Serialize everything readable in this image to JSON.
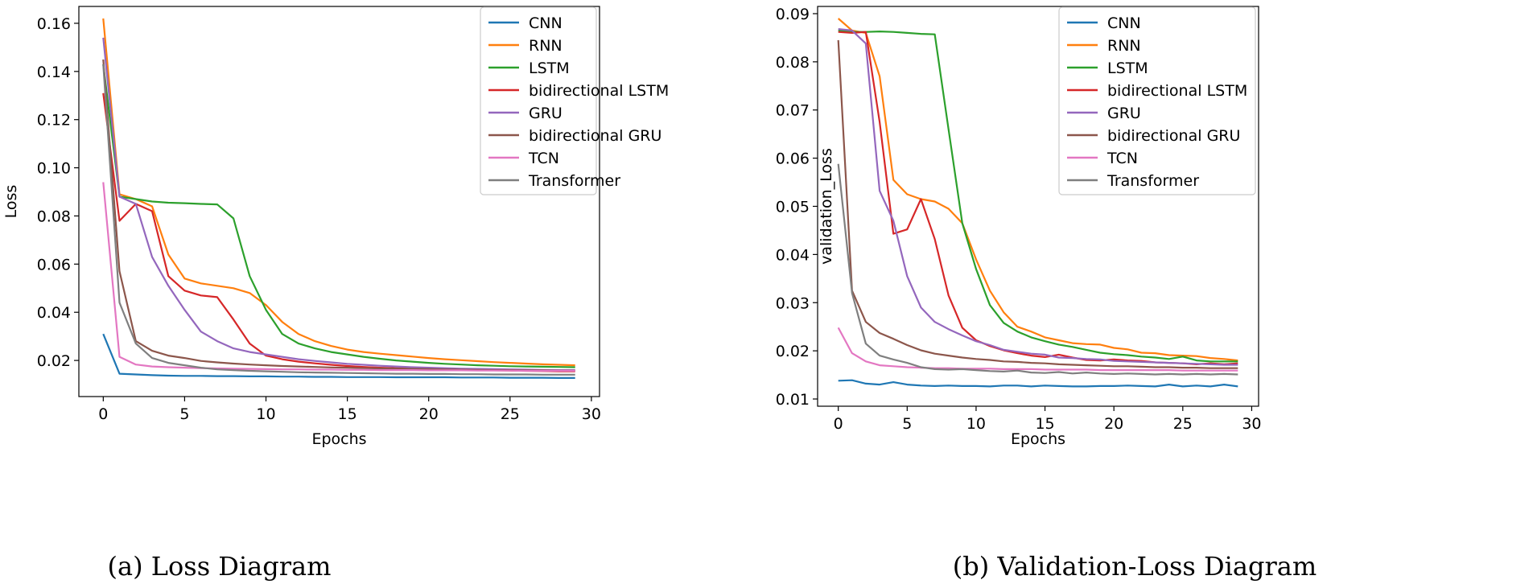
{
  "captions": [
    "(a) Loss Diagram",
    "(b) Validation-Loss Diagram"
  ],
  "chart_data": [
    {
      "type": "line",
      "title": "",
      "xlabel": "Epochs",
      "ylabel": "Loss",
      "xlim": [
        -1.5,
        30.5
      ],
      "ylim": [
        0.005,
        0.167
      ],
      "xticks": [
        0,
        5,
        10,
        15,
        20,
        25,
        30
      ],
      "yticks": [
        0.02,
        0.04,
        0.06,
        0.08,
        0.1,
        0.12,
        0.14,
        0.16
      ],
      "ytick_labels": [
        "0.02",
        "0.04",
        "0.06",
        "0.08",
        "0.10",
        "0.12",
        "0.14",
        "0.16"
      ],
      "legend_position": "upper right",
      "grid": false,
      "x": [
        0,
        1,
        2,
        3,
        4,
        5,
        6,
        7,
        8,
        9,
        10,
        11,
        12,
        13,
        14,
        15,
        16,
        17,
        18,
        19,
        20,
        21,
        22,
        23,
        24,
        25,
        26,
        27,
        28,
        29
      ],
      "series": [
        {
          "name": "CNN",
          "color": "#1f77b4",
          "values": [
            0.031,
            0.0145,
            0.0142,
            0.0139,
            0.0137,
            0.0136,
            0.0136,
            0.0135,
            0.0135,
            0.0134,
            0.0134,
            0.0133,
            0.0133,
            0.0132,
            0.0132,
            0.0131,
            0.0131,
            0.0131,
            0.013,
            0.013,
            0.013,
            0.013,
            0.0129,
            0.0129,
            0.0129,
            0.0128,
            0.0128,
            0.0128,
            0.0127,
            0.0127
          ]
        },
        {
          "name": "RNN",
          "color": "#ff7f0e",
          "values": [
            0.162,
            0.089,
            0.087,
            0.084,
            0.064,
            0.054,
            0.052,
            0.051,
            0.05,
            0.048,
            0.043,
            0.036,
            0.031,
            0.028,
            0.026,
            0.0245,
            0.0235,
            0.0228,
            0.0222,
            0.0216,
            0.021,
            0.0205,
            0.0201,
            0.0197,
            0.0193,
            0.019,
            0.0187,
            0.0184,
            0.0182,
            0.018
          ]
        },
        {
          "name": "LSTM",
          "color": "#2ca02c",
          "values": [
            0.143,
            0.088,
            0.087,
            0.086,
            0.0855,
            0.0853,
            0.085,
            0.0848,
            0.079,
            0.055,
            0.041,
            0.031,
            0.027,
            0.025,
            0.0235,
            0.0225,
            0.0215,
            0.0207,
            0.02,
            0.0195,
            0.019,
            0.0186,
            0.0183,
            0.018,
            0.0178,
            0.0176,
            0.0175,
            0.0174,
            0.0173,
            0.0172
          ]
        },
        {
          "name": "bidirectional LSTM",
          "color": "#d62728",
          "values": [
            0.131,
            0.078,
            0.085,
            0.082,
            0.055,
            0.049,
            0.047,
            0.0463,
            0.037,
            0.027,
            0.022,
            0.0205,
            0.0195,
            0.0188,
            0.0182,
            0.0177,
            0.0173,
            0.017,
            0.0168,
            0.0166,
            0.0164,
            0.0162,
            0.0161,
            0.016,
            0.0159,
            0.0158,
            0.0157,
            0.0156,
            0.0155,
            0.0155
          ]
        },
        {
          "name": "GRU",
          "color": "#9467bd",
          "values": [
            0.154,
            0.088,
            0.085,
            0.063,
            0.051,
            0.041,
            0.032,
            0.028,
            0.025,
            0.0235,
            0.0225,
            0.0215,
            0.0205,
            0.0198,
            0.0192,
            0.0186,
            0.0182,
            0.0178,
            0.0175,
            0.0172,
            0.017,
            0.0168,
            0.0166,
            0.0165,
            0.0164,
            0.0163,
            0.0162,
            0.0161,
            0.016,
            0.016
          ]
        },
        {
          "name": "bidirectional GRU",
          "color": "#8c564b",
          "values": [
            0.145,
            0.057,
            0.028,
            0.024,
            0.022,
            0.021,
            0.0198,
            0.0192,
            0.0187,
            0.0183,
            0.018,
            0.0177,
            0.0175,
            0.0173,
            0.0171,
            0.017,
            0.0168,
            0.0167,
            0.0166,
            0.0165,
            0.0164,
            0.0163,
            0.0162,
            0.0161,
            0.016,
            0.016,
            0.0159,
            0.0159,
            0.0158,
            0.0158
          ]
        },
        {
          "name": "TCN",
          "color": "#e377c2",
          "values": [
            0.094,
            0.0215,
            0.0183,
            0.0175,
            0.0172,
            0.017,
            0.0168,
            0.0167,
            0.0166,
            0.0165,
            0.0164,
            0.0163,
            0.0163,
            0.0162,
            0.0162,
            0.0161,
            0.0161,
            0.016,
            0.016,
            0.016,
            0.0159,
            0.0159,
            0.0159,
            0.0158,
            0.0158,
            0.0158,
            0.0157,
            0.0157,
            0.0157,
            0.0157
          ]
        },
        {
          "name": "Transformer",
          "color": "#7f7f7f",
          "values": [
            0.143,
            0.044,
            0.027,
            0.021,
            0.019,
            0.018,
            0.017,
            0.0163,
            0.016,
            0.0157,
            0.0155,
            0.0153,
            0.0151,
            0.015,
            0.0149,
            0.0148,
            0.0147,
            0.0146,
            0.0145,
            0.0145,
            0.0144,
            0.0144,
            0.0143,
            0.0143,
            0.0142,
            0.0142,
            0.0142,
            0.0141,
            0.0141,
            0.0141
          ]
        }
      ]
    },
    {
      "type": "line",
      "title": "",
      "xlabel": "Epochs",
      "ylabel": "validation_Loss",
      "xlim": [
        -1.5,
        30.5
      ],
      "ylim": [
        0.0085,
        0.0915
      ],
      "xticks": [
        0,
        5,
        10,
        15,
        20,
        25,
        30
      ],
      "yticks": [
        0.01,
        0.02,
        0.03,
        0.04,
        0.05,
        0.06,
        0.07,
        0.08,
        0.09
      ],
      "ytick_labels": [
        "0.01",
        "0.02",
        "0.03",
        "0.04",
        "0.05",
        "0.06",
        "0.07",
        "0.08",
        "0.09"
      ],
      "legend_position": "upper right",
      "grid": false,
      "x": [
        0,
        1,
        2,
        3,
        4,
        5,
        6,
        7,
        8,
        9,
        10,
        11,
        12,
        13,
        14,
        15,
        16,
        17,
        18,
        19,
        20,
        21,
        22,
        23,
        24,
        25,
        26,
        27,
        28,
        29
      ],
      "series": [
        {
          "name": "CNN",
          "color": "#1f77b4",
          "values": [
            0.0138,
            0.0139,
            0.0132,
            0.013,
            0.0135,
            0.013,
            0.0128,
            0.0127,
            0.0128,
            0.0127,
            0.0127,
            0.0126,
            0.0128,
            0.0128,
            0.0126,
            0.0128,
            0.0127,
            0.0126,
            0.0126,
            0.0127,
            0.0127,
            0.0128,
            0.0127,
            0.0126,
            0.013,
            0.0126,
            0.0128,
            0.0126,
            0.013,
            0.0126
          ]
        },
        {
          "name": "RNN",
          "color": "#ff7f0e",
          "values": [
            0.089,
            0.0865,
            0.086,
            0.077,
            0.0555,
            0.0525,
            0.0515,
            0.051,
            0.0495,
            0.0465,
            0.039,
            0.0325,
            0.028,
            0.025,
            0.024,
            0.0228,
            0.0222,
            0.0216,
            0.0214,
            0.0213,
            0.0206,
            0.0203,
            0.0196,
            0.0195,
            0.0191,
            0.019,
            0.0189,
            0.0185,
            0.0183,
            0.018
          ]
        },
        {
          "name": "LSTM",
          "color": "#2ca02c",
          "values": [
            0.0865,
            0.0862,
            0.0862,
            0.0863,
            0.0862,
            0.086,
            0.0858,
            0.0857,
            0.066,
            0.0465,
            0.037,
            0.0295,
            0.0258,
            0.024,
            0.0228,
            0.022,
            0.0213,
            0.0208,
            0.0202,
            0.0196,
            0.0193,
            0.0191,
            0.0188,
            0.0186,
            0.0183,
            0.0188,
            0.018,
            0.0178,
            0.0178,
            0.0178
          ]
        },
        {
          "name": "bidirectional LSTM",
          "color": "#d62728",
          "values": [
            0.0862,
            0.086,
            0.0862,
            0.0675,
            0.0443,
            0.0452,
            0.0515,
            0.0432,
            0.0315,
            0.0248,
            0.0222,
            0.021,
            0.0201,
            0.0195,
            0.019,
            0.0187,
            0.0192,
            0.0186,
            0.0181,
            0.018,
            0.0182,
            0.018,
            0.0179,
            0.0176,
            0.0175,
            0.0174,
            0.0172,
            0.0174,
            0.0172,
            0.0174
          ]
        },
        {
          "name": "GRU",
          "color": "#9467bd",
          "values": [
            0.0868,
            0.0865,
            0.0838,
            0.0532,
            0.047,
            0.0355,
            0.029,
            0.026,
            0.0245,
            0.0232,
            0.022,
            0.0212,
            0.0202,
            0.0198,
            0.0194,
            0.0192,
            0.0186,
            0.0185,
            0.0183,
            0.0182,
            0.0179,
            0.0178,
            0.0177,
            0.0176,
            0.0175,
            0.0174,
            0.0173,
            0.0172,
            0.0171,
            0.0171
          ]
        },
        {
          "name": "bidirectional GRU",
          "color": "#8c564b",
          "values": [
            0.0845,
            0.0325,
            0.026,
            0.0237,
            0.0225,
            0.0212,
            0.0201,
            0.0194,
            0.019,
            0.0186,
            0.0183,
            0.0181,
            0.0178,
            0.0177,
            0.0175,
            0.0174,
            0.0172,
            0.0171,
            0.017,
            0.0169,
            0.0168,
            0.0168,
            0.0167,
            0.0166,
            0.0166,
            0.0165,
            0.0165,
            0.0164,
            0.0164,
            0.0164
          ]
        },
        {
          "name": "TCN",
          "color": "#e377c2",
          "values": [
            0.0248,
            0.0195,
            0.0178,
            0.017,
            0.0168,
            0.0166,
            0.0165,
            0.0164,
            0.0164,
            0.0163,
            0.0163,
            0.0163,
            0.0162,
            0.0162,
            0.0162,
            0.0161,
            0.0161,
            0.0161,
            0.0161,
            0.016,
            0.016,
            0.016,
            0.016,
            0.016,
            0.016,
            0.0159,
            0.0159,
            0.0159,
            0.0159,
            0.0159
          ]
        },
        {
          "name": "Transformer",
          "color": "#7f7f7f",
          "values": [
            0.0588,
            0.032,
            0.0215,
            0.019,
            0.0182,
            0.0175,
            0.0166,
            0.0162,
            0.0161,
            0.0162,
            0.016,
            0.0158,
            0.0157,
            0.0159,
            0.0155,
            0.0154,
            0.0156,
            0.0153,
            0.0155,
            0.0153,
            0.0152,
            0.0153,
            0.0152,
            0.0151,
            0.0152,
            0.0151,
            0.0152,
            0.0151,
            0.0152,
            0.0151
          ]
        }
      ]
    }
  ]
}
